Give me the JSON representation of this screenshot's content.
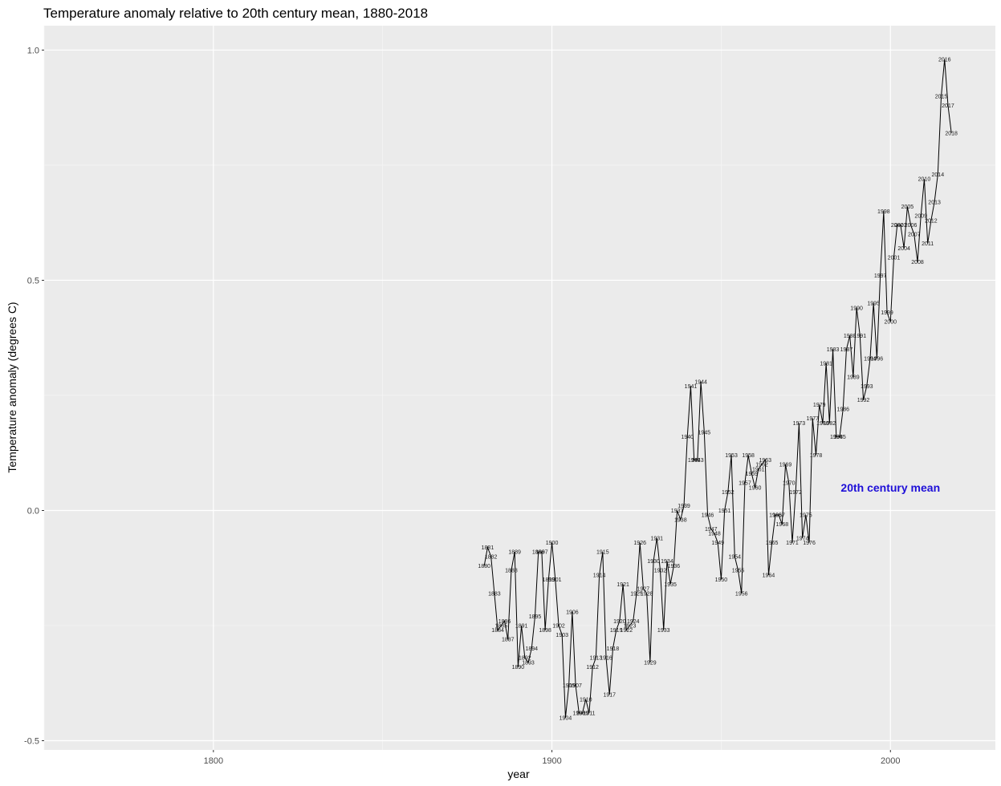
{
  "chart_data": {
    "type": "line",
    "title": "Temperature anomaly relative to 20th century mean, 1880-2018",
    "xlabel": "year",
    "ylabel": "Temperature anomaly (degrees C)",
    "x_ticks": [
      1800,
      1900,
      2000
    ],
    "y_ticks": [
      -0.5,
      0.0,
      0.5,
      1.0
    ],
    "xlim": [
      1750,
      2031
    ],
    "ylim": [
      -0.52,
      1.053
    ],
    "grid": true,
    "point_labels": "year",
    "annotation": {
      "text": "20th century mean",
      "x": 2000,
      "y": 0.05,
      "color": "#1e0fd8"
    },
    "x": [
      1880,
      1881,
      1882,
      1883,
      1884,
      1885,
      1886,
      1887,
      1888,
      1889,
      1890,
      1891,
      1892,
      1893,
      1894,
      1895,
      1896,
      1897,
      1898,
      1899,
      1900,
      1901,
      1902,
      1903,
      1904,
      1905,
      1906,
      1907,
      1908,
      1909,
      1910,
      1911,
      1912,
      1913,
      1914,
      1915,
      1916,
      1917,
      1918,
      1919,
      1920,
      1921,
      1922,
      1923,
      1924,
      1925,
      1926,
      1927,
      1928,
      1929,
      1930,
      1931,
      1932,
      1933,
      1934,
      1935,
      1936,
      1937,
      1938,
      1939,
      1940,
      1941,
      1942,
      1943,
      1944,
      1945,
      1946,
      1947,
      1948,
      1949,
      1950,
      1951,
      1952,
      1953,
      1954,
      1955,
      1956,
      1957,
      1958,
      1959,
      1960,
      1961,
      1962,
      1963,
      1964,
      1965,
      1966,
      1967,
      1968,
      1969,
      1970,
      1971,
      1972,
      1973,
      1974,
      1975,
      1976,
      1977,
      1978,
      1979,
      1980,
      1981,
      1982,
      1983,
      1984,
      1985,
      1986,
      1987,
      1988,
      1989,
      1990,
      1991,
      1992,
      1993,
      1994,
      1995,
      1996,
      1997,
      1998,
      1999,
      2000,
      2001,
      2002,
      2003,
      2004,
      2005,
      2006,
      2007,
      2008,
      2009,
      2010,
      2011,
      2012,
      2013,
      2014,
      2015,
      2016,
      2017,
      2018
    ],
    "values": [
      -0.12,
      -0.08,
      -0.1,
      -0.18,
      -0.26,
      -0.25,
      -0.24,
      -0.28,
      -0.13,
      -0.09,
      -0.34,
      -0.25,
      -0.32,
      -0.33,
      -0.3,
      -0.23,
      -0.09,
      -0.09,
      -0.26,
      -0.15,
      -0.07,
      -0.15,
      -0.25,
      -0.27,
      -0.45,
      -0.38,
      -0.22,
      -0.38,
      -0.44,
      -0.44,
      -0.41,
      -0.44,
      -0.34,
      -0.32,
      -0.14,
      -0.09,
      -0.32,
      -0.4,
      -0.3,
      -0.26,
      -0.24,
      -0.16,
      -0.26,
      -0.25,
      -0.24,
      -0.18,
      -0.07,
      -0.17,
      -0.18,
      -0.33,
      -0.11,
      -0.06,
      -0.13,
      -0.26,
      -0.11,
      -0.16,
      -0.12,
      0.0,
      -0.02,
      0.01,
      0.16,
      0.27,
      0.11,
      0.11,
      0.28,
      0.17,
      -0.01,
      -0.04,
      -0.05,
      -0.07,
      -0.15,
      0.0,
      0.04,
      0.12,
      -0.1,
      -0.13,
      -0.18,
      0.06,
      0.12,
      0.08,
      0.05,
      0.09,
      0.1,
      0.11,
      -0.14,
      -0.07,
      -0.01,
      -0.01,
      -0.03,
      0.1,
      0.06,
      -0.07,
      0.04,
      0.19,
      -0.06,
      -0.01,
      -0.07,
      0.2,
      0.12,
      0.23,
      0.19,
      0.32,
      0.19,
      0.35,
      0.16,
      0.16,
      0.22,
      0.35,
      0.38,
      0.29,
      0.44,
      0.38,
      0.24,
      0.27,
      0.33,
      0.45,
      0.33,
      0.51,
      0.65,
      0.43,
      0.41,
      0.55,
      0.62,
      0.62,
      0.57,
      0.66,
      0.62,
      0.6,
      0.54,
      0.64,
      0.72,
      0.58,
      0.63,
      0.67,
      0.73,
      0.9,
      0.98,
      0.88,
      0.82
    ]
  }
}
